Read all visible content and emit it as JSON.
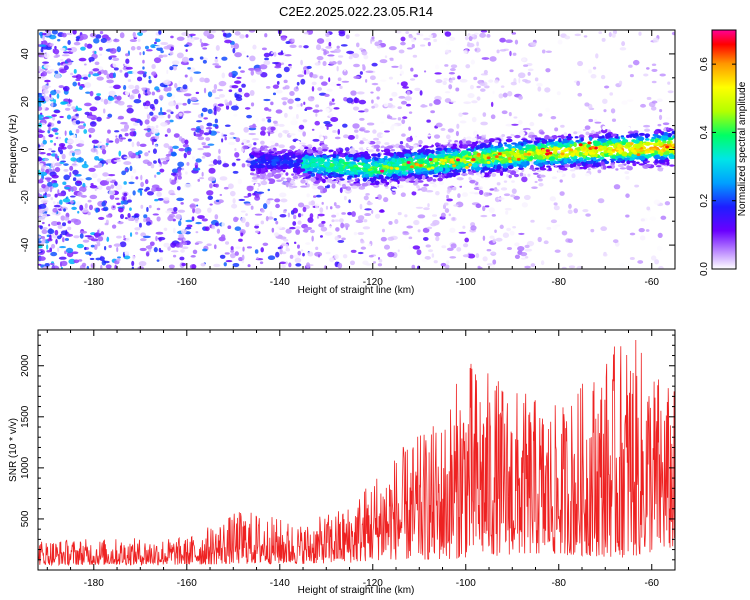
{
  "title": "C2E2.2025.022.23.05.R14",
  "chart_data": [
    {
      "type": "heatmap",
      "title": "C2E2.2025.022.23.05.R14",
      "xlabel": "Height of straight line (km)",
      "ylabel": "Frequency (Hz)",
      "xlim": [
        -192,
        -55
      ],
      "ylim": [
        -50,
        50
      ],
      "xticks": [
        -180,
        -160,
        -140,
        -120,
        -100,
        -80,
        -60
      ],
      "yticks": [
        -40,
        -20,
        0,
        20,
        40
      ],
      "description_points": [
        {
          "x": -140,
          "freq": -5
        },
        {
          "x": -120,
          "freq": -8
        },
        {
          "x": -100,
          "freq": -4
        },
        {
          "x": -80,
          "freq": -1
        },
        {
          "x": -57,
          "freq": 1
        }
      ],
      "colorbar": {
        "label": "Normalized spectral amplitude",
        "range": [
          0.0,
          0.7
        ],
        "ticks": [
          0.0,
          0.2,
          0.4,
          0.6
        ],
        "colors": [
          "#ffffff",
          "#c8a0ff",
          "#6a00ff",
          "#1e1eff",
          "#00a0ff",
          "#00e6e6",
          "#00ff64",
          "#b4ff00",
          "#ffff00",
          "#ff9600",
          "#ff0000",
          "#ff0096"
        ]
      }
    },
    {
      "type": "line",
      "xlabel": "Height of straight line (km)",
      "ylabel": "SNR (10 * v/v)",
      "xlim": [
        -192,
        -55
      ],
      "ylim": [
        0,
        2350
      ],
      "xticks": [
        -180,
        -160,
        -140,
        -120,
        -100,
        -80,
        -60
      ],
      "yticks": [
        500,
        1000,
        1500,
        2000
      ],
      "color": "#ee2222",
      "envelope": [
        {
          "x": -190,
          "low": 50,
          "high": 300
        },
        {
          "x": -160,
          "low": 50,
          "high": 320
        },
        {
          "x": -148,
          "low": 60,
          "high": 600
        },
        {
          "x": -135,
          "low": 60,
          "high": 450
        },
        {
          "x": -125,
          "low": 70,
          "high": 650
        },
        {
          "x": -118,
          "low": 100,
          "high": 1050
        },
        {
          "x": -105,
          "low": 100,
          "high": 1500
        },
        {
          "x": -100,
          "low": 120,
          "high": 2100
        },
        {
          "x": -90,
          "low": 150,
          "high": 1800
        },
        {
          "x": -80,
          "low": 150,
          "high": 1600
        },
        {
          "x": -65,
          "low": 120,
          "high": 2350
        },
        {
          "x": -56,
          "low": 200,
          "high": 1800
        }
      ]
    }
  ]
}
